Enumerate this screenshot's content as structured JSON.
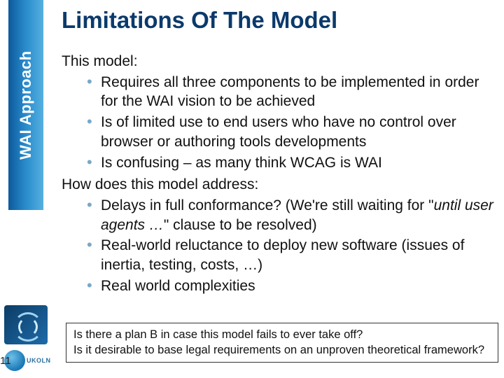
{
  "colors": {
    "title": "#0b3a6b",
    "body_text": "#111111",
    "bullet_marker": "#7aa7c7",
    "rail_gradient_from": "#0d5a9c",
    "rail_gradient_mid": "#2a8ccc",
    "rail_gradient_to": "#56b0e0",
    "logo_bg_from": "#0c3d66",
    "logo_bg_to": "#1e6aa8",
    "background": "#ffffff"
  },
  "type": "presentation-slide",
  "typography": {
    "title_fontsize": 33,
    "body_fontsize": 21,
    "footer_fontsize": 16.5,
    "rail_fontsize": 22,
    "font_family": "Arial"
  },
  "rail": {
    "label": "WAI Approach"
  },
  "title": "Limitations Of The Model",
  "body": {
    "lead1": "This model:",
    "bullets1": [
      "Requires all three components to be implemented in order for the WAI vision to be achieved",
      "Is of limited use to end users who have no control over browser or authoring tools developments",
      "Is confusing – as many think WCAG is WAI"
    ],
    "lead2": "How does this model address:",
    "bullets2": [
      {
        "pre": "Delays in full conformance? (We're still waiting for \"",
        "italic": "until user agents …",
        "post": "\" clause to be resolved)"
      },
      {
        "pre": "Real-world reluctance to deploy new software (issues of inertia, testing, costs, …)",
        "italic": "",
        "post": ""
      },
      {
        "pre": "Real world complexities",
        "italic": "",
        "post": ""
      }
    ]
  },
  "footer": {
    "q1": "Is there a plan B in case this model fails to ever take off?",
    "q2": "Is it desirable to base legal requirements on an unproven theoretical  framework?"
  },
  "page_number": "11",
  "brand": {
    "name": "UKOLN"
  }
}
